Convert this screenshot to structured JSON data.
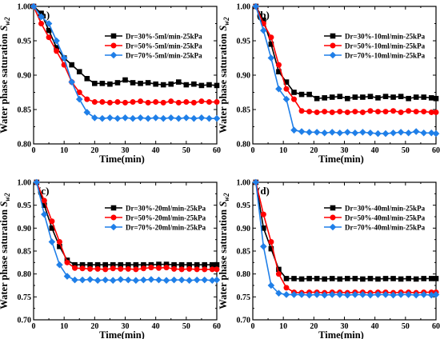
{
  "chart_data": [
    {
      "type": "line",
      "panel_label": "(a)",
      "xlabel": "Time(min)",
      "ylabel_main": "Water phase saturation ",
      "ylabel_symbol": "S",
      "ylabel_sub": "w2",
      "xlim": [
        0,
        60
      ],
      "ylim": [
        0.8,
        1.0
      ],
      "xticks": [
        "0",
        "10",
        "20",
        "30",
        "40",
        "50",
        "60"
      ],
      "yticks": [
        "0.80",
        "0.85",
        "0.90",
        "0.95",
        "1.00"
      ],
      "legend_position": "top-right",
      "grid": false,
      "x": [
        0,
        2.5,
        5,
        7.5,
        10,
        12.5,
        15,
        17.5,
        20,
        22.5,
        25,
        27.5,
        30,
        32.5,
        35,
        37.5,
        40,
        42.5,
        45,
        47.5,
        50,
        52.5,
        55,
        57.5,
        60
      ],
      "series": [
        {
          "name": "Dr=30%-5ml/min-25kPa",
          "color": "#000000",
          "marker": "square",
          "values": [
            1.0,
            0.99,
            0.965,
            0.94,
            0.925,
            0.915,
            0.905,
            0.895,
            0.888,
            0.888,
            0.887,
            0.889,
            0.893,
            0.889,
            0.888,
            0.889,
            0.887,
            0.886,
            0.887,
            0.89,
            0.886,
            0.887,
            0.885,
            0.886,
            0.885
          ]
        },
        {
          "name": "Dr=50%-5ml/min-25kPa",
          "color": "#ff0000",
          "marker": "circle",
          "values": [
            1.0,
            0.975,
            0.955,
            0.935,
            0.915,
            0.89,
            0.875,
            0.865,
            0.861,
            0.861,
            0.86,
            0.861,
            0.86,
            0.861,
            0.862,
            0.86,
            0.861,
            0.86,
            0.862,
            0.86,
            0.861,
            0.86,
            0.862,
            0.861,
            0.861
          ]
        },
        {
          "name": "Dr=70%-5ml/min-25kPa",
          "color": "#1f7fe8",
          "marker": "diamond",
          "values": [
            1.0,
            0.985,
            0.975,
            0.95,
            0.925,
            0.89,
            0.865,
            0.846,
            0.838,
            0.837,
            0.838,
            0.837,
            0.838,
            0.837,
            0.838,
            0.837,
            0.838,
            0.837,
            0.838,
            0.837,
            0.838,
            0.837,
            0.838,
            0.837,
            0.837
          ]
        }
      ]
    },
    {
      "type": "line",
      "panel_label": "(b)",
      "xlabel": "Time(min)",
      "ylabel_main": "Water phase saturation ",
      "ylabel_symbol": "S",
      "ylabel_sub": "w2",
      "xlim": [
        0,
        60
      ],
      "ylim": [
        0.8,
        1.0
      ],
      "xticks": [
        "0",
        "10",
        "20",
        "30",
        "40",
        "50",
        "60"
      ],
      "yticks": [
        "0.80",
        "0.85",
        "0.90",
        "0.95",
        "1.00"
      ],
      "legend_position": "top-right",
      "grid": false,
      "x": [
        1,
        3.5,
        6,
        8.5,
        11,
        13.5,
        16,
        18.5,
        21,
        23.5,
        26,
        28.5,
        31,
        33.5,
        36,
        38.5,
        41,
        43.5,
        46,
        48.5,
        51,
        53.5,
        56,
        58.5,
        60
      ],
      "series": [
        {
          "name": "Dr=30%-10ml/min-25kPa",
          "color": "#000000",
          "marker": "square",
          "values": [
            1.0,
            0.98,
            0.945,
            0.905,
            0.89,
            0.875,
            0.872,
            0.872,
            0.866,
            0.867,
            0.868,
            0.869,
            0.866,
            0.868,
            0.868,
            0.869,
            0.867,
            0.869,
            0.868,
            0.869,
            0.866,
            0.868,
            0.868,
            0.867,
            0.866
          ]
        },
        {
          "name": "Dr=50%-10ml/min-25kPa",
          "color": "#ff0000",
          "marker": "circle",
          "values": [
            1.0,
            0.975,
            0.955,
            0.915,
            0.88,
            0.865,
            0.848,
            0.847,
            0.846,
            0.847,
            0.846,
            0.847,
            0.846,
            0.847,
            0.846,
            0.848,
            0.847,
            0.847,
            0.848,
            0.846,
            0.848,
            0.847,
            0.847,
            0.846,
            0.846
          ]
        },
        {
          "name": "Dr=70%-10ml/min-25kPa",
          "color": "#1f7fe8",
          "marker": "diamond",
          "values": [
            1.0,
            0.965,
            0.925,
            0.88,
            0.865,
            0.82,
            0.818,
            0.817,
            0.817,
            0.816,
            0.817,
            0.816,
            0.817,
            0.816,
            0.817,
            0.816,
            0.815,
            0.815,
            0.816,
            0.817,
            0.816,
            0.818,
            0.816,
            0.816,
            0.815
          ]
        }
      ]
    },
    {
      "type": "line",
      "panel_label": "(c)",
      "xlabel": "Time(min)",
      "ylabel_main": "Water phase saturation ",
      "ylabel_symbol": "S",
      "ylabel_sub": "w2",
      "xlim": [
        0,
        60
      ],
      "ylim": [
        0.7,
        1.0
      ],
      "xticks": [
        "0",
        "10",
        "20",
        "30",
        "40",
        "50",
        "60"
      ],
      "yticks": [
        "0.70",
        "0.75",
        "0.80",
        "0.85",
        "0.90",
        "0.95",
        "1.00"
      ],
      "legend_position": "top-right",
      "grid": false,
      "x": [
        1,
        3.5,
        6,
        8.5,
        11,
        13.5,
        16,
        18.5,
        21,
        23.5,
        26,
        28.5,
        31,
        33.5,
        36,
        38.5,
        41,
        43.5,
        46,
        48.5,
        51,
        53.5,
        56,
        58.5,
        60
      ],
      "series": [
        {
          "name": "Dr=30%-20ml/min-25kPa",
          "color": "#000000",
          "marker": "square",
          "values": [
            1.0,
            0.95,
            0.9,
            0.86,
            0.83,
            0.82,
            0.82,
            0.82,
            0.82,
            0.82,
            0.82,
            0.82,
            0.82,
            0.82,
            0.82,
            0.82,
            0.821,
            0.821,
            0.82,
            0.82,
            0.82,
            0.82,
            0.82,
            0.82,
            0.82
          ]
        },
        {
          "name": "Dr=50%-20ml/min-25kPa",
          "color": "#ff0000",
          "marker": "circle",
          "values": [
            1.0,
            0.96,
            0.915,
            0.87,
            0.825,
            0.813,
            0.812,
            0.811,
            0.811,
            0.81,
            0.812,
            0.811,
            0.811,
            0.81,
            0.812,
            0.814,
            0.813,
            0.814,
            0.811,
            0.81,
            0.811,
            0.81,
            0.81,
            0.81,
            0.81
          ]
        },
        {
          "name": "Dr=70%-20ml/min-25kPa",
          "color": "#1f7fe8",
          "marker": "diamond",
          "values": [
            1.0,
            0.93,
            0.87,
            0.82,
            0.795,
            0.787,
            0.787,
            0.788,
            0.786,
            0.787,
            0.786,
            0.788,
            0.787,
            0.786,
            0.787,
            0.788,
            0.787,
            0.786,
            0.787,
            0.787,
            0.786,
            0.787,
            0.787,
            0.786,
            0.787
          ]
        }
      ]
    },
    {
      "type": "line",
      "panel_label": "(d)",
      "xlabel": "Time(min)",
      "ylabel_main": "Water phase saturation ",
      "ylabel_symbol": "S",
      "ylabel_sub": "w2",
      "xlim": [
        0,
        60
      ],
      "ylim": [
        0.7,
        1.0
      ],
      "xticks": [
        "0",
        "10",
        "20",
        "30",
        "40",
        "50",
        "60"
      ],
      "yticks": [
        "0.70",
        "0.75",
        "0.80",
        "0.85",
        "0.90",
        "0.95",
        "1.00"
      ],
      "legend_position": "top-right",
      "grid": false,
      "x": [
        1,
        3.5,
        6,
        8.5,
        11,
        13.5,
        16,
        18.5,
        21,
        23.5,
        26,
        28.5,
        31,
        33.5,
        36,
        38.5,
        41,
        43.5,
        46,
        48.5,
        51,
        53.5,
        56,
        58.5,
        60
      ],
      "series": [
        {
          "name": "Dr=30%-40ml/min-25kPa",
          "color": "#000000",
          "marker": "square",
          "values": [
            1.0,
            0.9,
            0.855,
            0.81,
            0.79,
            0.79,
            0.789,
            0.79,
            0.79,
            0.789,
            0.79,
            0.789,
            0.79,
            0.79,
            0.789,
            0.79,
            0.789,
            0.79,
            0.79,
            0.789,
            0.79,
            0.789,
            0.79,
            0.79,
            0.79
          ]
        },
        {
          "name": "Dr=50%-40ml/min-25kPa",
          "color": "#ff0000",
          "marker": "circle",
          "values": [
            1.0,
            0.93,
            0.87,
            0.8,
            0.77,
            0.76,
            0.759,
            0.76,
            0.76,
            0.759,
            0.76,
            0.76,
            0.759,
            0.76,
            0.76,
            0.759,
            0.76,
            0.76,
            0.759,
            0.76,
            0.76,
            0.759,
            0.76,
            0.76,
            0.76
          ]
        },
        {
          "name": "Dr=70%-40ml/min-25kPa",
          "color": "#1f7fe8",
          "marker": "diamond",
          "values": [
            1.0,
            0.86,
            0.775,
            0.758,
            0.755,
            0.755,
            0.755,
            0.754,
            0.755,
            0.754,
            0.755,
            0.755,
            0.754,
            0.755,
            0.755,
            0.754,
            0.755,
            0.755,
            0.754,
            0.755,
            0.755,
            0.754,
            0.755,
            0.754,
            0.755
          ]
        }
      ]
    }
  ]
}
